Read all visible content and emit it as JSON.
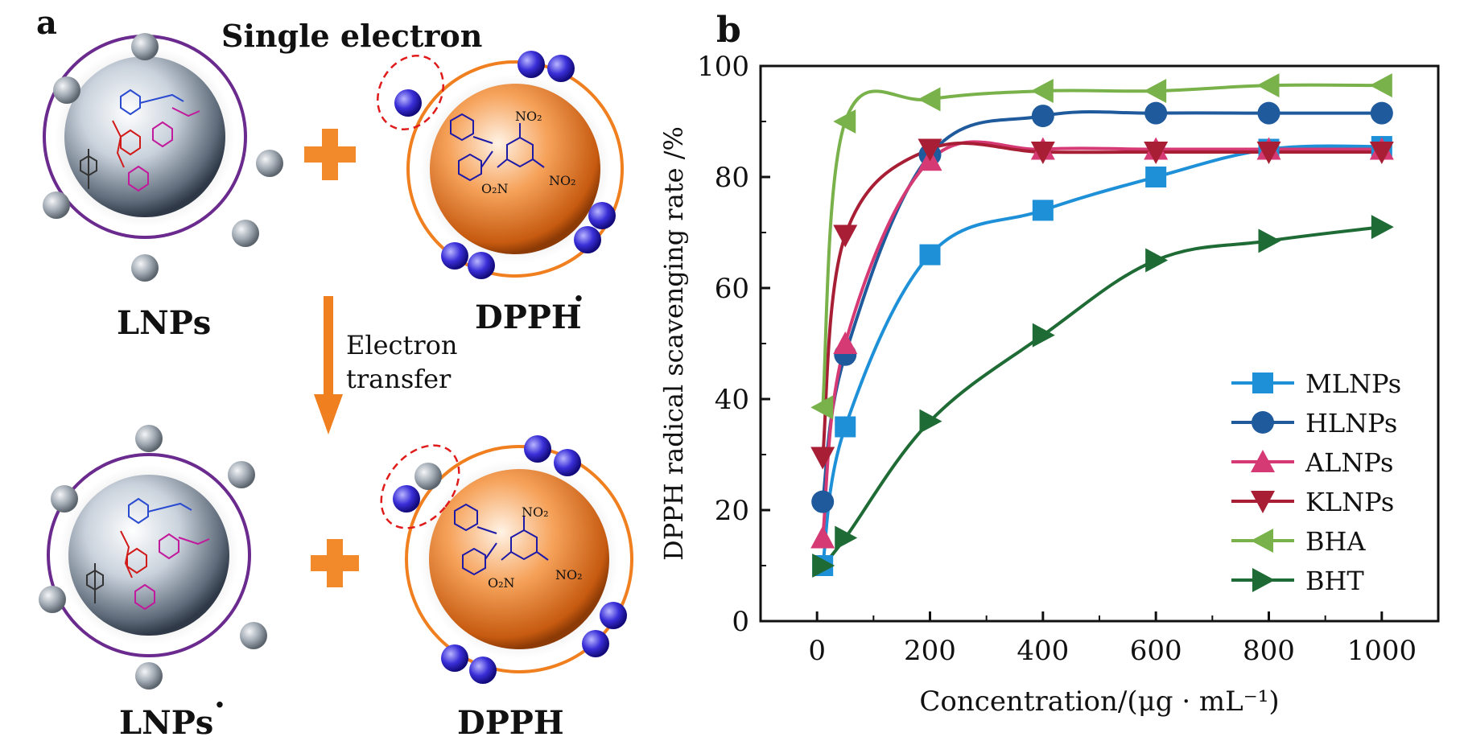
{
  "panel_a": {
    "label": "a",
    "single_electron": "Single electron",
    "lnps_label": "LNPs",
    "dpph_radical_label": "DPPH",
    "radical_dot": "·",
    "electron_transfer_line1": "Electron",
    "electron_transfer_line2": "transfer",
    "lnps_radical_label": "LNPs",
    "dpph_label": "DPPH",
    "nitro_group": "NO₂",
    "nitro_group_left": "O₂N",
    "colors": {
      "ring_purple": "#6a2a8e",
      "ring_orange": "#f07f1f",
      "plus_orange": "#f28a2c",
      "electron_blue": "#2a22c8",
      "electron_grey": "#9aa3ad",
      "core_grey": "#b7c2cf",
      "core_orange": "#f08a32",
      "highlight_red": "#e01b1b"
    }
  },
  "chart_data": {
    "panel_label": "b",
    "type": "line",
    "xlabel": "Concentration/(μg · mL⁻¹)",
    "ylabel": "DPPH radical scavenging rate /%",
    "xlim": [
      -100,
      1100
    ],
    "ylim": [
      0,
      100
    ],
    "xticks": [
      0,
      200,
      400,
      600,
      800,
      1000
    ],
    "yticks": [
      0,
      20,
      40,
      60,
      80,
      100
    ],
    "grid": false,
    "legend_position": "bottom-right",
    "series": [
      {
        "name": "MLNPs",
        "marker": "square",
        "color": "#1e90d8",
        "x": [
          10,
          50,
          200,
          400,
          600,
          800,
          1000
        ],
        "y": [
          10,
          35,
          66,
          74,
          80,
          85,
          85.5
        ]
      },
      {
        "name": "HLNPs",
        "marker": "circle",
        "color": "#1f5a9c",
        "x": [
          10,
          50,
          200,
          400,
          600,
          800,
          1000
        ],
        "y": [
          21.5,
          48,
          84,
          91,
          91.5,
          91.5,
          91.5
        ]
      },
      {
        "name": "ALNPs",
        "marker": "triangle-up",
        "color": "#d63a74",
        "x": [
          10,
          50,
          200,
          400,
          600,
          800,
          1000
        ],
        "y": [
          15,
          50,
          83,
          85,
          85,
          85,
          85
        ]
      },
      {
        "name": "KLNPs",
        "marker": "triangle-down",
        "color": "#a81e35",
        "x": [
          10,
          50,
          200,
          400,
          600,
          800,
          1000
        ],
        "y": [
          29.5,
          69.5,
          85,
          84.5,
          84.5,
          84.5,
          84.5
        ]
      },
      {
        "name": "BHA",
        "marker": "triangle-left",
        "color": "#79b24a",
        "x": [
          10,
          50,
          200,
          400,
          600,
          800,
          1000
        ],
        "y": [
          38.5,
          90,
          94,
          95.5,
          95.5,
          96.5,
          96.5
        ]
      },
      {
        "name": "BHT",
        "marker": "triangle-right",
        "color": "#1f6b35",
        "x": [
          10,
          50,
          200,
          400,
          600,
          800,
          1000
        ],
        "y": [
          10,
          15,
          36,
          51.5,
          65,
          68.5,
          71
        ]
      }
    ]
  }
}
